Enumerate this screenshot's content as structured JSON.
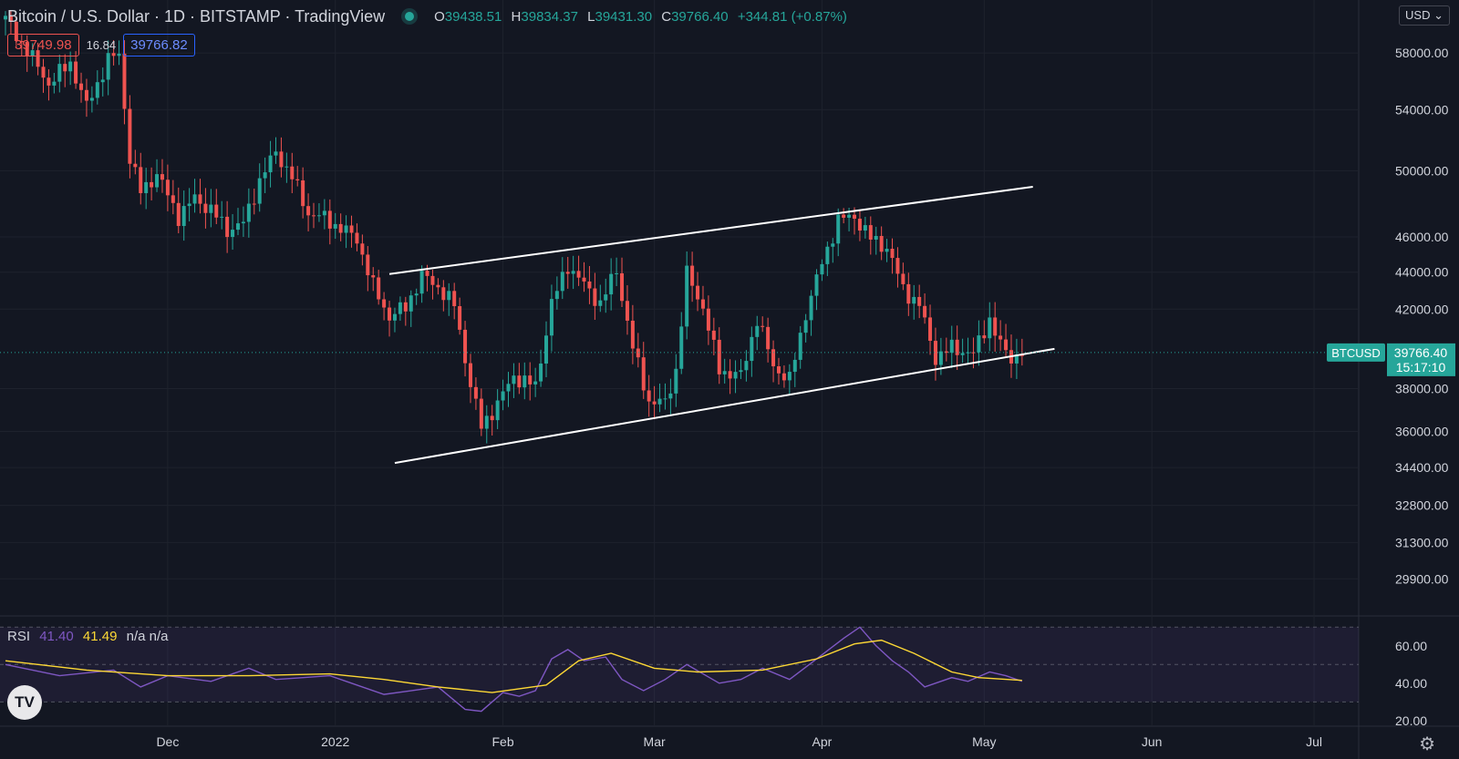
{
  "header": {
    "symbol": "Bitcoin / U.S. Dollar · 1D · BITSTAMP · TradingView",
    "ohlc": [
      {
        "k": "O",
        "v": "39438.51"
      },
      {
        "k": "H",
        "v": "39834.37"
      },
      {
        "k": "L",
        "v": "39431.30"
      },
      {
        "k": "C",
        "v": "39766.40"
      },
      {
        "k": "",
        "v": "+344.81 (+0.87%)"
      }
    ],
    "bid": "39749.98",
    "spread": "16.84",
    "ask": "39766.82",
    "currency_button": "USD ⌄"
  },
  "rsi_legend": {
    "label": "RSI",
    "value1": "41.40",
    "value2": "41.49",
    "extra": "n/a n/a"
  },
  "logo_text": "TV",
  "settings_icon": "gear-icon",
  "colors": {
    "up": "#26a69a",
    "down": "#ef5350",
    "rsi": "#7e57c2",
    "rsi_ma": "#fdd835",
    "bg": "#131722"
  },
  "chart_data": [
    {
      "type": "candlestick",
      "title": "Bitcoin / U.S. Dollar",
      "y_scale": "log",
      "ylim": [
        28600,
        62000
      ],
      "y_ticks": [
        58000,
        54000,
        50000,
        46000,
        44000,
        42000,
        38000,
        36000,
        34400,
        32800,
        31300,
        29900
      ],
      "y_tick_labels": [
        "58000.00",
        "54000.00",
        "50000.00",
        "46000.00",
        "44000.00",
        "42000.00",
        "38000.00",
        "36000.00",
        "34400.00",
        "32800.00",
        "31300.00",
        "29900.00"
      ],
      "x_tick_labels": [
        "Dec",
        "2022",
        "Feb",
        "Mar",
        "Apr",
        "May",
        "Jun",
        "Jul"
      ],
      "x_tick_days": [
        30,
        61,
        92,
        120,
        151,
        181,
        212,
        242
      ],
      "last_price_label": "BTCUSD",
      "last_price": "39766.40",
      "countdown": "15:17:10",
      "trendlines": [
        {
          "from": [
            "2022-01-11",
            43900
          ],
          "to": [
            "2022-05-10",
            49000
          ]
        },
        {
          "from": [
            "2022-01-12",
            34600
          ],
          "to": [
            "2022-05-14",
            39950
          ]
        }
      ],
      "close_path": [
        [
          0,
          60500
        ],
        [
          5,
          57600
        ],
        [
          8,
          55800
        ],
        [
          12,
          57300
        ],
        [
          15,
          54200
        ],
        [
          19,
          57500
        ],
        [
          21,
          57900
        ],
        [
          23,
          50800
        ],
        [
          25,
          48700
        ],
        [
          28,
          49800
        ],
        [
          32,
          47200
        ],
        [
          35,
          48300
        ],
        [
          38,
          47600
        ],
        [
          41,
          46400
        ],
        [
          44,
          46800
        ],
        [
          47,
          49400
        ],
        [
          50,
          51200
        ],
        [
          53,
          49600
        ],
        [
          56,
          47400
        ],
        [
          59,
          47100
        ],
        [
          62,
          46500
        ],
        [
          65,
          45900
        ],
        [
          68,
          43200
        ],
        [
          71,
          41600
        ],
        [
          74,
          42100
        ],
        [
          77,
          43800
        ],
        [
          80,
          43200
        ],
        [
          83,
          42200
        ],
        [
          86,
          38200
        ],
        [
          88,
          36200
        ],
        [
          91,
          37300
        ],
        [
          94,
          38600
        ],
        [
          98,
          38100
        ],
        [
          101,
          42300
        ],
        [
          104,
          44400
        ],
        [
          107,
          43300
        ],
        [
          110,
          42300
        ],
        [
          113,
          44100
        ],
        [
          116,
          40000
        ],
        [
          119,
          37400
        ],
        [
          122,
          37300
        ],
        [
          124,
          38900
        ],
        [
          126,
          43900
        ],
        [
          129,
          42100
        ],
        [
          132,
          38900
        ],
        [
          136,
          38600
        ],
        [
          139,
          41500
        ],
        [
          142,
          39100
        ],
        [
          145,
          38400
        ],
        [
          148,
          41800
        ],
        [
          151,
          44500
        ],
        [
          154,
          47000
        ],
        [
          157,
          47200
        ],
        [
          160,
          45900
        ],
        [
          163,
          45400
        ],
        [
          166,
          43100
        ],
        [
          169,
          42200
        ],
        [
          172,
          39500
        ],
        [
          175,
          40000
        ],
        [
          179,
          39700
        ],
        [
          182,
          41500
        ],
        [
          184,
          40100
        ],
        [
          186,
          39500
        ],
        [
          188,
          39770
        ]
      ],
      "last_candle_day": 188
    },
    {
      "type": "line",
      "title": "RSI",
      "ylim": [
        17,
        75
      ],
      "y_ticks": [
        60,
        40,
        20
      ],
      "y_tick_labels": [
        "60.00",
        "40.00",
        "20.00"
      ],
      "bands": [
        30,
        50,
        70
      ],
      "series": [
        {
          "name": "RSI",
          "path": [
            [
              0,
              50
            ],
            [
              10,
              44
            ],
            [
              20,
              47
            ],
            [
              25,
              38
            ],
            [
              30,
              44
            ],
            [
              38,
              41
            ],
            [
              45,
              48
            ],
            [
              50,
              42
            ],
            [
              55,
              43
            ],
            [
              60,
              44
            ],
            [
              66,
              38
            ],
            [
              70,
              34
            ],
            [
              75,
              36
            ],
            [
              80,
              38
            ],
            [
              85,
              26
            ],
            [
              88,
              25
            ],
            [
              92,
              35
            ],
            [
              95,
              33
            ],
            [
              98,
              36
            ],
            [
              101,
              53
            ],
            [
              104,
              58
            ],
            [
              107,
              52
            ],
            [
              111,
              54
            ],
            [
              114,
              42
            ],
            [
              118,
              36
            ],
            [
              122,
              42
            ],
            [
              126,
              50
            ],
            [
              129,
              45
            ],
            [
              132,
              40
            ],
            [
              136,
              42
            ],
            [
              140,
              48
            ],
            [
              145,
              42
            ],
            [
              150,
              53
            ],
            [
              155,
              64
            ],
            [
              158,
              70
            ],
            [
              161,
              60
            ],
            [
              164,
              52
            ],
            [
              167,
              46
            ],
            [
              170,
              38
            ],
            [
              175,
              43
            ],
            [
              178,
              41
            ],
            [
              182,
              46
            ],
            [
              185,
              44
            ],
            [
              188,
              41
            ]
          ]
        },
        {
          "name": "RSI-based MA",
          "path": [
            [
              0,
              52
            ],
            [
              15,
              47
            ],
            [
              30,
              44
            ],
            [
              45,
              44
            ],
            [
              60,
              45
            ],
            [
              70,
              42
            ],
            [
              80,
              38
            ],
            [
              90,
              35
            ],
            [
              100,
              39
            ],
            [
              106,
              52
            ],
            [
              112,
              56
            ],
            [
              120,
              48
            ],
            [
              128,
              46
            ],
            [
              140,
              47
            ],
            [
              150,
              53
            ],
            [
              157,
              61
            ],
            [
              162,
              63
            ],
            [
              168,
              56
            ],
            [
              175,
              46
            ],
            [
              180,
              43
            ],
            [
              188,
              41.5
            ]
          ]
        }
      ]
    }
  ]
}
